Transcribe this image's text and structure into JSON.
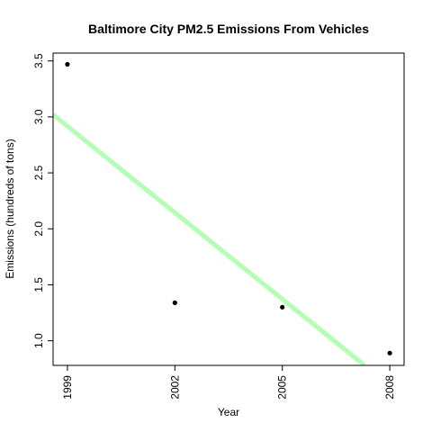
{
  "chart_data": {
    "type": "scatter",
    "title": "Baltimore City PM2.5 Emissions From Vehicles",
    "xlabel": "Year",
    "ylabel": "Emissions (hundreds of tons)",
    "x": [
      1999,
      2002,
      2005,
      2008
    ],
    "y": [
      3.47,
      1.34,
      1.3,
      0.89
    ],
    "x_ticks": [
      "1999",
      "2002",
      "2005",
      "2008"
    ],
    "y_ticks": [
      "1.0",
      "1.5",
      "2.0",
      "2.5",
      "3.0",
      "3.5"
    ],
    "xlim": [
      1998.6,
      2008.4
    ],
    "ylim": [
      0.78,
      3.57
    ],
    "grid": false,
    "trend_line": {
      "type": "linear_regression",
      "color": "#b3ffb3",
      "y_at_1998_6": 3.02,
      "y_at_2007_3": 0.78
    },
    "point_color": "#000000",
    "tick_label_orientation_x": "vertical",
    "tick_label_orientation_y": "vertical"
  }
}
